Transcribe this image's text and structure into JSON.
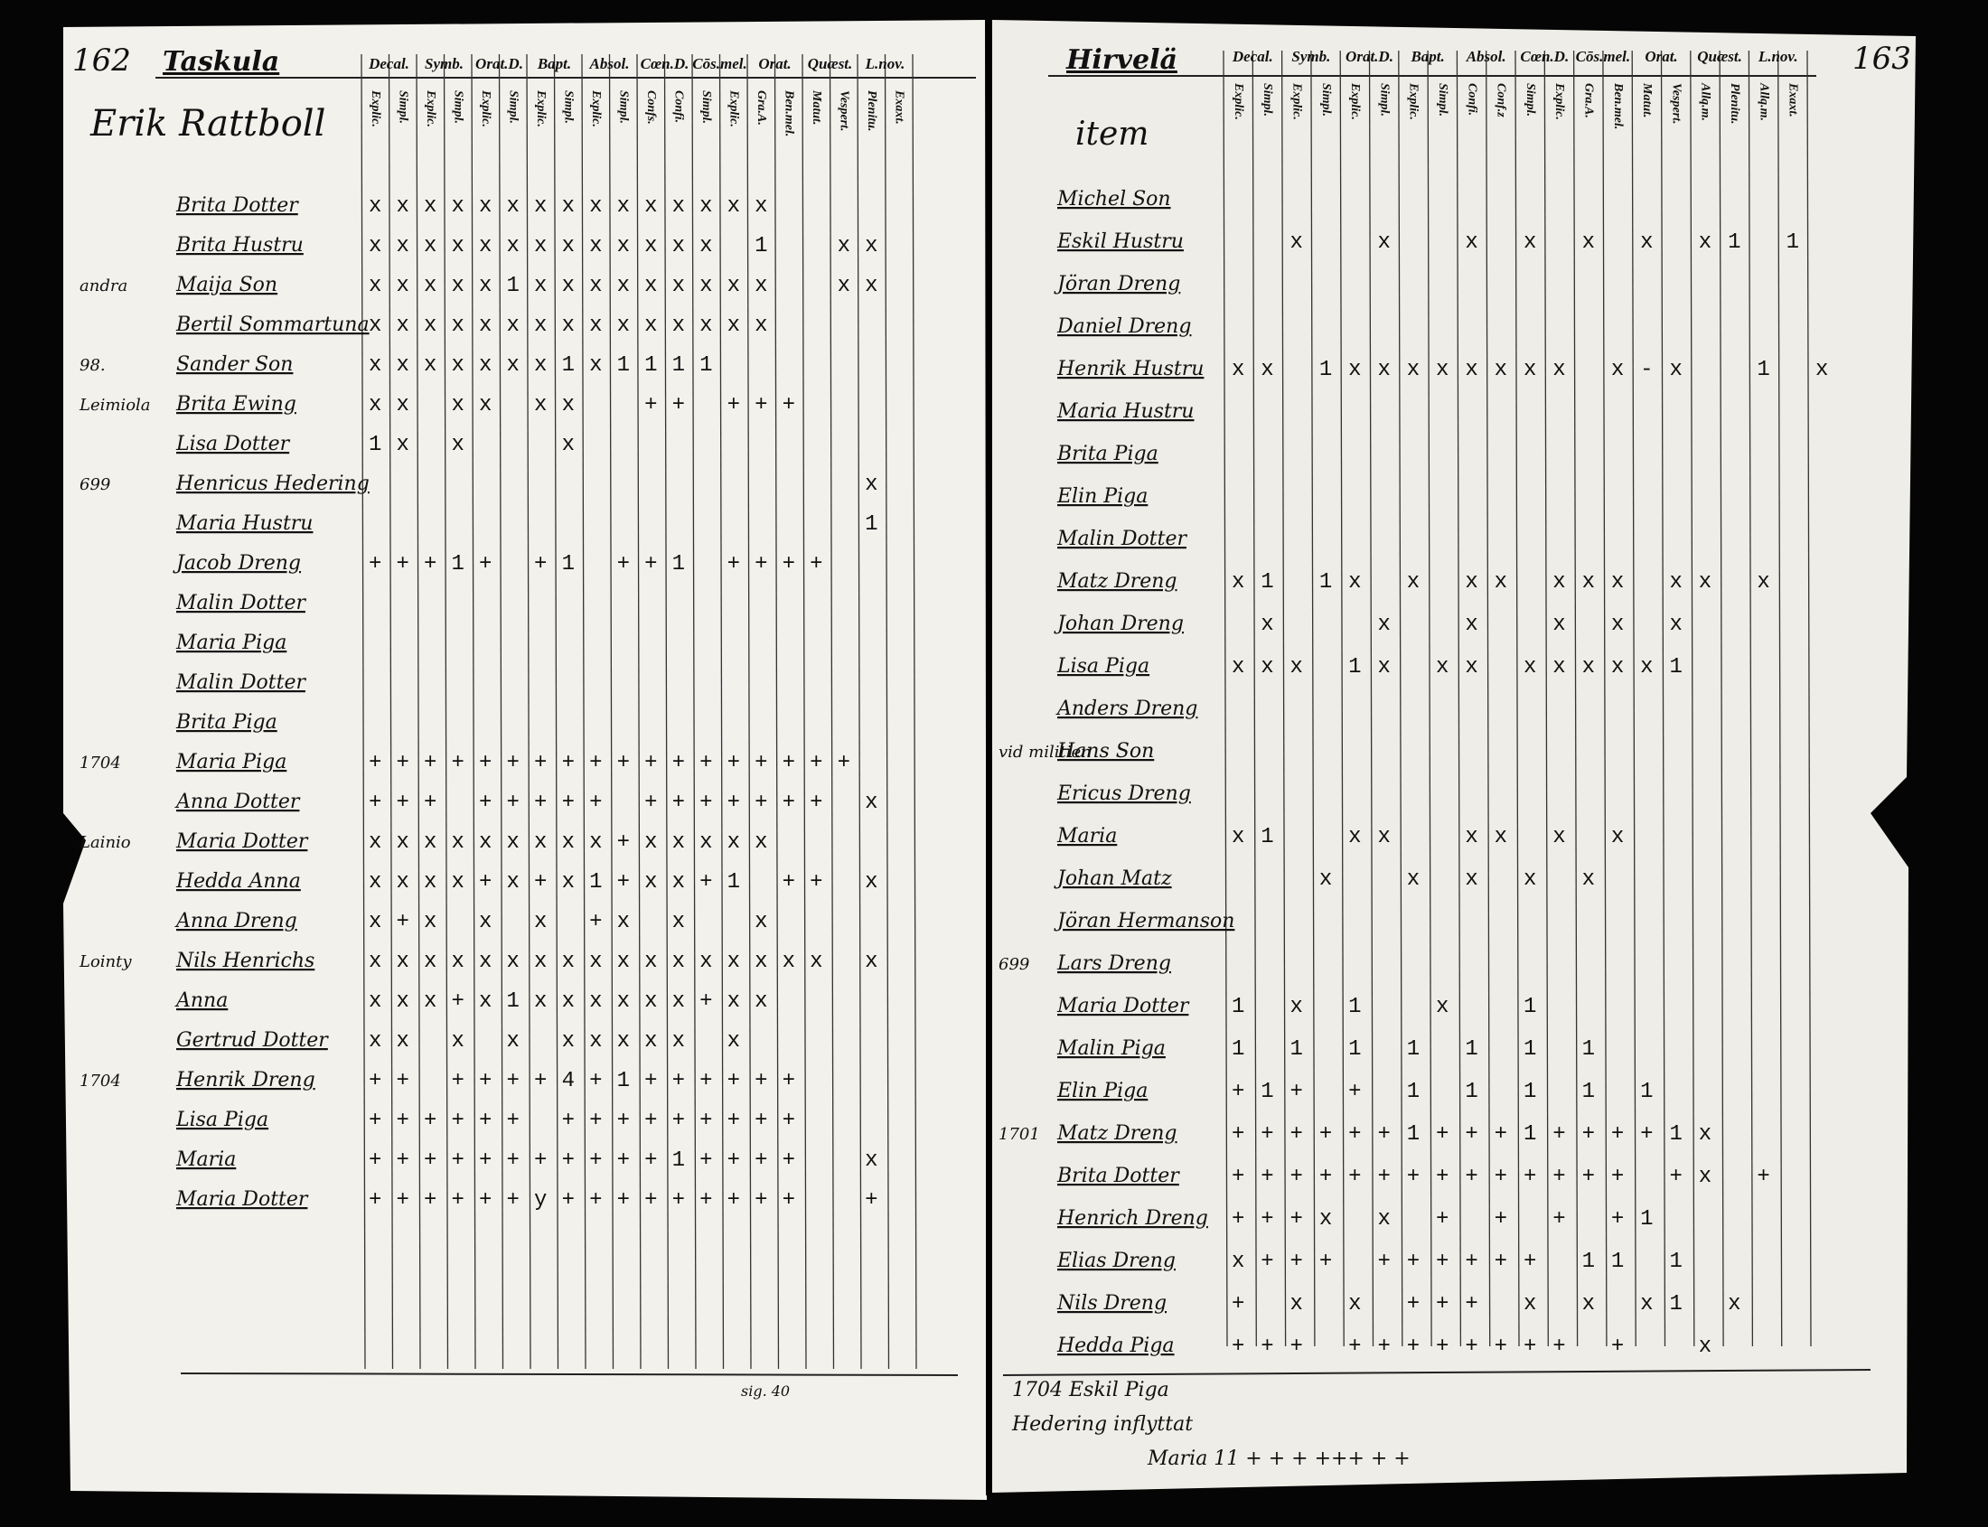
{
  "left_page": {
    "page_number": "162",
    "place": "Taskula",
    "household": "Erik Rattboll",
    "headings": [
      "Decal.",
      "Symb.",
      "Orat.D.",
      "Bapt.",
      "Absol.",
      "Cœn.D.",
      "Cōs.mel.",
      "Orat.",
      "Quæst.",
      "L.nov."
    ],
    "subheads": [
      "Explic.",
      "Simpl.",
      "Explic.",
      "Simpl.",
      "Explic.",
      "Simpl.",
      "Explic.",
      "Simpl.",
      "Explic.",
      "Simpl.",
      "Confs.",
      "Confi.",
      "Simpl.",
      "Explic.",
      "Gra.A.",
      "Ben.mel.",
      "Matut.",
      "Vespert.",
      "Plenitu.",
      "Exaxt."
    ],
    "rows": [
      {
        "name": "Brita Dotter",
        "marks": "xxxxxxxxxxxxxxx"
      },
      {
        "name": "Brita Hustru",
        "marks": "xxxxxxxxxxxxx 1  xx"
      },
      {
        "note": "andra",
        "name": "Maija Son",
        "marks": "xxxxx1xxxxxxxxx  xx"
      },
      {
        "name": "Bertil Sommartuna",
        "marks": "xxxxxxxxxxxxxxx"
      },
      {
        "note": "98.",
        "name": "Sander Son",
        "marks": "xxxxxxx1x1111"
      },
      {
        "note": "Leimiola",
        "name": "Brita Ewing",
        "marks": "xx xx xx  ++ +++"
      },
      {
        "name": "Lisa Dotter",
        "marks": "1x x   x"
      },
      {
        "note": "699",
        "name": "Henricus Hedering",
        "marks": "                  x"
      },
      {
        "name": "Maria Hustru",
        "marks": "                  1"
      },
      {
        "name": "Jacob Dreng",
        "marks": "+++1+ +1 ++1 ++++"
      },
      {
        "name": "Malin Dotter"
      },
      {
        "name": "Maria Piga"
      },
      {
        "name": "Malin Dotter"
      },
      {
        "name": "Brita Piga"
      },
      {
        "note": "1704",
        "name": "Maria Piga",
        "marks": "++++++++++++++++++"
      },
      {
        "name": "Anna Dotter",
        "marks": "+++ +++++ +++++++ x"
      },
      {
        "note": "Lainio",
        "name": "Maria Dotter",
        "marks": "xxxxxxxxx+xxxxx"
      },
      {
        "name": "Hedda Anna",
        "marks": "xxxx+x+x1+xx+1 ++ x"
      },
      {
        "name": "Anna Dreng",
        "marks": "x+x x x +x x  x"
      },
      {
        "note": "Lointy",
        "name": "Nils Henrichs",
        "marks": "xxxxxxxxxxxxxxxxx x"
      },
      {
        "name": "Anna",
        "marks": "xxx+x1xxxxxx+xx"
      },
      {
        "name": "Gertrud Dotter",
        "marks": "xx x x xxxxx x"
      },
      {
        "note": "1704",
        "name": "Henrik Dreng",
        "marks": "++ ++++4+1++++++"
      },
      {
        "name": "Lisa Piga",
        "marks": "++++++ +++++++++"
      },
      {
        "name": "Maria",
        "marks": "+++++++++++1++++  x"
      },
      {
        "name": "Maria Dotter",
        "marks": "++++++y+++++++++  +"
      }
    ],
    "footer": "sig. 40"
  },
  "right_page": {
    "page_number": "163",
    "place": "Hirvelä",
    "headings": [
      "Decal.",
      "Symb.",
      "Orat.D.",
      "Bapt.",
      "Absol.",
      "Cœn.D.",
      "Cōs.mel.",
      "Orat.",
      "Quæst.",
      "L.nov."
    ],
    "subheads": [
      "Explic.",
      "Simpl.",
      "Explic.",
      "Simpl.",
      "Explic.",
      "Simpl.",
      "Explic.",
      "Simpl.",
      "Confi.",
      "Conf.z",
      "Simpl.",
      "Explic.",
      "Gra.A.",
      "Ben.mel.",
      "Matut.",
      "Vespert.",
      "Allq.m.",
      "Plenitu.",
      "Allq.m.",
      "Exaxt."
    ],
    "item": "item",
    "rows": [
      {
        "name": "Michel Son"
      },
      {
        "name": "Eskil Hustru",
        "marks": "  x  x  x x x x x1 1"
      },
      {
        "name": "Jöran Dreng"
      },
      {
        "name": "Daniel Dreng"
      },
      {
        "name": "Henrik Hustru",
        "marks": "xx 1xxxxxxxx x-x  1 x"
      },
      {
        "name": "Maria Hustru"
      },
      {
        "name": "Brita Piga"
      },
      {
        "name": "Elin Piga"
      },
      {
        "name": "Malin Dotter"
      },
      {
        "name": "Matz Dreng",
        "marks": "x1 1x x xx xxx xx x"
      },
      {
        "name": "Johan Dreng",
        "marks": " x   x  x  x x x"
      },
      {
        "name": "Lisa Piga",
        "marks": "xxx 1x xx xxxxx1"
      },
      {
        "name": "Anders Dreng"
      },
      {
        "note": "vid militien",
        "name": "Hans Son"
      },
      {
        "name": "Ericus Dreng"
      },
      {
        "name": "Maria",
        "marks": "x1  xx  xx x x"
      },
      {
        "name": "Johan Matz",
        "marks": "   x  x x x x"
      },
      {
        "name": "Jöran Hermanson"
      },
      {
        "note": "699",
        "name": "Lars Dreng"
      },
      {
        "name": "Maria Dotter",
        "marks": "1 x 1  x  1"
      },
      {
        "name": "Malin Piga",
        "marks": "1 1 1 1 1 1 1"
      },
      {
        "name": "Elin Piga",
        "marks": "+1+ + 1 1 1 1 1"
      },
      {
        "note": "1701",
        "name": "Matz Dreng",
        "marks": "++++++1+++1++++1x"
      },
      {
        "name": "Brita Dotter",
        "marks": "++++++++++++++ +x +"
      },
      {
        "name": "Henrich Dreng",
        "marks": "+++x x + + + +1"
      },
      {
        "name": "Elias Dreng",
        "marks": "x+++ ++++++ 11 1"
      },
      {
        "name": "Nils Dreng",
        "marks": "+ x x +++ x x x1 x"
      },
      {
        "name": "Hedda Piga",
        "marks": "+++ ++++++++ +  x"
      }
    ],
    "notes": [
      "1704 Eskil Piga",
      "Hedering inflyttat",
      "Maria 11 + + + +++ + +"
    ]
  }
}
